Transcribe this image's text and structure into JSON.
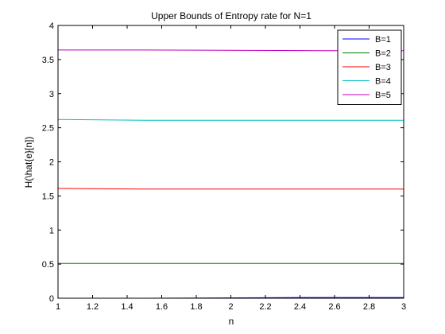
{
  "chart_data": {
    "type": "line",
    "title": "Upper Bounds of Entropy rate for N=1",
    "xlabel": "n",
    "ylabel": "H(\\hat{e}[n])",
    "xlim": [
      1,
      3
    ],
    "ylim": [
      0,
      4
    ],
    "xticks": [
      "1",
      "1.2",
      "1.4",
      "1.6",
      "1.8",
      "2",
      "2.2",
      "2.4",
      "2.6",
      "2.8",
      "3"
    ],
    "yticks": [
      "0",
      "0.5",
      "1",
      "1.5",
      "2",
      "2.5",
      "3",
      "3.5",
      "4"
    ],
    "grid": false,
    "legend_position": "top-right",
    "series": [
      {
        "name": "B=1",
        "color": "#0000ff",
        "x": [
          1,
          1.5,
          2.5,
          3
        ],
        "y": [
          0,
          0,
          0.01,
          0.01
        ]
      },
      {
        "name": "B=2",
        "color": "#008000",
        "x": [
          1,
          1.5,
          2.5,
          3
        ],
        "y": [
          0.51,
          0.51,
          0.51,
          0.51
        ]
      },
      {
        "name": "B=3",
        "color": "#ff0000",
        "x": [
          1,
          1.5,
          2.5,
          3
        ],
        "y": [
          1.61,
          1.6,
          1.6,
          1.6
        ]
      },
      {
        "name": "B=4",
        "color": "#00bfbf",
        "x": [
          1,
          1.5,
          2.5,
          3
        ],
        "y": [
          2.62,
          2.61,
          2.61,
          2.61
        ]
      },
      {
        "name": "B=5",
        "color": "#bf00bf",
        "x": [
          1,
          1.5,
          2.5,
          3
        ],
        "y": [
          3.64,
          3.64,
          3.63,
          3.63
        ]
      }
    ]
  }
}
